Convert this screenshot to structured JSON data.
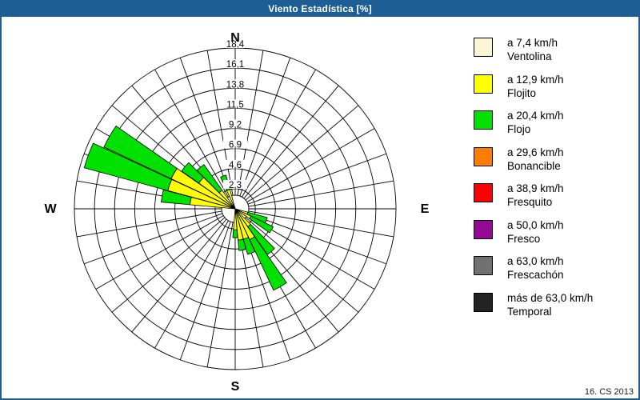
{
  "window": {
    "title": "Viento Estadística [%]",
    "footer": "16. CS 2013",
    "title_bar_color": "#1d5e94",
    "border_color": "#1d5e94"
  },
  "chart_data": {
    "type": "windrose-stacked-polar-bar",
    "title": "Viento Estadística [%]",
    "units": "%",
    "grid": {
      "sector_count": 36,
      "sector_step_deg": 10,
      "ring_step": 2.3,
      "max_value": 18.4,
      "ring_labels": [
        "2,3",
        "4,6",
        "6,9",
        "9,2",
        "11,5",
        "13,8",
        "16,1",
        "18,4"
      ],
      "grid_color": "#000000"
    },
    "compass": {
      "north": "N",
      "east": "E",
      "south": "S",
      "west": "W"
    },
    "petals": [
      {
        "azimuth_deg": 110,
        "segments": [
          {
            "category": "Flojito",
            "value": 1.5
          },
          {
            "category": "Flojo",
            "value": 2.3
          }
        ]
      },
      {
        "azimuth_deg": 120,
        "segments": [
          {
            "category": "Flojito",
            "value": 2.0
          },
          {
            "category": "Flojo",
            "value": 2.8
          }
        ]
      },
      {
        "azimuth_deg": 140,
        "segments": [
          {
            "category": "Flojito",
            "value": 2.5
          },
          {
            "category": "Flojo",
            "value": 3.9
          }
        ]
      },
      {
        "azimuth_deg": 150,
        "segments": [
          {
            "category": "Flojito",
            "value": 3.9
          },
          {
            "category": "Flojo",
            "value": 6.4
          }
        ]
      },
      {
        "azimuth_deg": 160,
        "segments": [
          {
            "category": "Flojito",
            "value": 3.6
          },
          {
            "category": "Flojo",
            "value": 1.8
          }
        ]
      },
      {
        "azimuth_deg": 170,
        "segments": [
          {
            "category": "Flojito",
            "value": 3.6
          },
          {
            "category": "Flojo",
            "value": 1.2
          }
        ]
      },
      {
        "azimuth_deg": 180,
        "segments": [
          {
            "category": "Flojito",
            "value": 2.4
          },
          {
            "category": "Flojo",
            "value": 0.9
          }
        ]
      },
      {
        "azimuth_deg": 280,
        "segments": [
          {
            "category": "Flojito",
            "value": 5.2
          },
          {
            "category": "Flojo",
            "value": 3.3
          }
        ]
      },
      {
        "azimuth_deg": 290,
        "segments": [
          {
            "category": "Flojito",
            "value": 8.0
          },
          {
            "category": "Flojo",
            "value": 9.9
          }
        ]
      },
      {
        "azimuth_deg": 300,
        "segments": [
          {
            "category": "Flojito",
            "value": 8.1
          },
          {
            "category": "Flojo",
            "value": 8.5
          }
        ]
      },
      {
        "azimuth_deg": 310,
        "segments": [
          {
            "category": "Flojito",
            "value": 5.1
          },
          {
            "category": "Flojo",
            "value": 2.4
          }
        ]
      },
      {
        "azimuth_deg": 320,
        "segments": [
          {
            "category": "Flojito",
            "value": 2.6
          },
          {
            "category": "Flojo",
            "value": 3.6
          }
        ]
      },
      {
        "azimuth_deg": 340,
        "segments": [
          {
            "category": "Flojito",
            "value": 2.3
          },
          {
            "category": "Flojo",
            "value": 1.7
          }
        ]
      }
    ]
  },
  "legend": {
    "items": [
      {
        "speed": "a 7,4 km/h",
        "name": "Ventolina",
        "color": "#fbf5d5"
      },
      {
        "speed": "a 12,9 km/h",
        "name": "Flojito",
        "color": "#ffff00"
      },
      {
        "speed": "a 20,4 km/h",
        "name": "Flojo",
        "color": "#00e100"
      },
      {
        "speed": "a 29,6 km/h",
        "name": "Bonancible",
        "color": "#fb7e00"
      },
      {
        "speed": "a 38,9 km/h",
        "name": "Fresquito",
        "color": "#fb0000"
      },
      {
        "speed": "a 50,0 km/h",
        "name": "Fresco",
        "color": "#940894"
      },
      {
        "speed": "a 63,0 km/h",
        "name": "Frescachón",
        "color": "#717171"
      },
      {
        "speed": "más de 63,0 km/h",
        "name": "Temporal",
        "color": "#232323"
      }
    ]
  }
}
